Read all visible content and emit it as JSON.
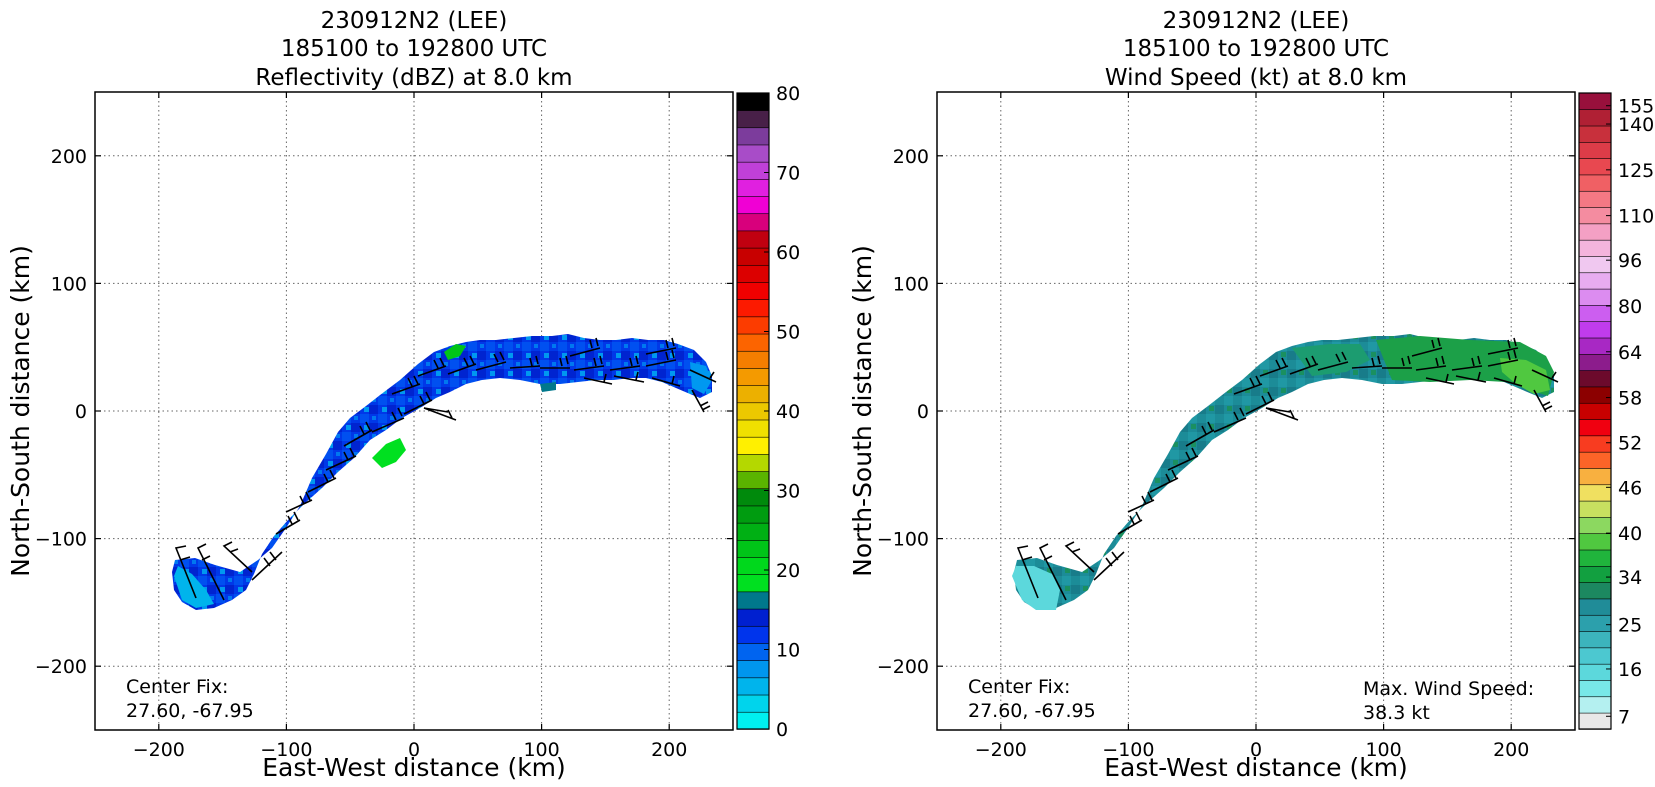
{
  "chart_data": [
    {
      "type": "heatmap",
      "title": [
        "230912N2 (LEE)",
        "185100 to 192800 UTC",
        "Reflectivity (dBZ) at 8.0 km"
      ],
      "xlabel": "East-West distance (km)",
      "ylabel": "North-South distance (km)",
      "xlim": [
        -250,
        250
      ],
      "ylim": [
        -250,
        250
      ],
      "xticks": [
        -200,
        -100,
        0,
        100,
        200
      ],
      "yticks": [
        -200,
        -100,
        0,
        100,
        200
      ],
      "grid": true,
      "annotations": {
        "center_fix_label": "Center Fix:",
        "center_fix_value": "27.60, -67.95"
      },
      "colorbar": {
        "range": [
          0,
          80
        ],
        "tick_labels": [
          "0",
          "10",
          "20",
          "30",
          "40",
          "50",
          "60",
          "70",
          "80"
        ],
        "tick_values": [
          0,
          10,
          20,
          30,
          40,
          50,
          60,
          70,
          80
        ],
        "colors": [
          "#00f0f0",
          "#00d4ec",
          "#00b4ec",
          "#0096ee",
          "#0064f0",
          "#0034ec",
          "#0020d0",
          "#00788c",
          "#00e020",
          "#00d81c",
          "#00c418",
          "#00b014",
          "#009c10",
          "#008a0c",
          "#5ab400",
          "#b4d800",
          "#fff000",
          "#f0e000",
          "#ecc800",
          "#ecb000",
          "#f49a00",
          "#f47e00",
          "#fc6400",
          "#fc3c00",
          "#fc1a00",
          "#f00000",
          "#dc0000",
          "#c80000",
          "#c00010",
          "#d8007c",
          "#f000d4",
          "#e020e0",
          "#c040d8",
          "#a84cc8",
          "#7c3c9c",
          "#482048",
          "#000000"
        ]
      },
      "data_shape": "curved band from (-190,-140) through (-100,-80), (0,10), (100,32) to (225,20)",
      "data_values_range_dbz": [
        2,
        28
      ]
    },
    {
      "type": "heatmap",
      "title": [
        "230912N2 (LEE)",
        "185100 to 192800 UTC",
        "Wind Speed (kt) at 8.0 km"
      ],
      "xlabel": "East-West distance (km)",
      "ylabel": "North-South distance (km)",
      "xlim": [
        -250,
        250
      ],
      "ylim": [
        -250,
        250
      ],
      "xticks": [
        -200,
        -100,
        0,
        100,
        200
      ],
      "yticks": [
        -200,
        -100,
        0,
        100,
        200
      ],
      "grid": true,
      "annotations": {
        "center_fix_label": "Center Fix:",
        "center_fix_value": "27.60, -67.95",
        "max_wind_label": "Max. Wind Speed:",
        "max_wind_value": "38.3 kt"
      },
      "colorbar": {
        "range": [
          7,
          160
        ],
        "tick_labels": [
          "7",
          "16",
          "25",
          "34",
          "40",
          "46",
          "52",
          "58",
          "64",
          "80",
          "96",
          "110",
          "125",
          "140",
          "155"
        ],
        "colors": [
          "#e8e8e8",
          "#b4f0f0",
          "#78e8e8",
          "#5cd8dc",
          "#4cc8d0",
          "#3cb4bc",
          "#2ca0ac",
          "#208c98",
          "#1c8860",
          "#12a040",
          "#20b43c",
          "#50c840",
          "#8cd860",
          "#c8e060",
          "#f0e060",
          "#f8b040",
          "#fc6428",
          "#f83c20",
          "#f00010",
          "#c80000",
          "#8c0000",
          "#6c0a2c",
          "#8c1c8c",
          "#a828c4",
          "#c03cec",
          "#cc5ef0",
          "#dc8cf0",
          "#e8acf0",
          "#f0c8f0",
          "#f4b4dc",
          "#f4a0c4",
          "#f48ca0",
          "#f47884",
          "#f06064",
          "#e84850",
          "#dc3c48",
          "#c8303c",
          "#b02034",
          "#98103c"
        ],
        "tick_fracs": [
          0.0,
          0.0775,
          0.15,
          0.228,
          0.3,
          0.375,
          0.448,
          0.522,
          0.597,
          0.672,
          0.747,
          0.82,
          0.895,
          0.97,
          1.045
        ]
      },
      "data_values_range_kt": [
        14,
        38.3
      ]
    }
  ]
}
